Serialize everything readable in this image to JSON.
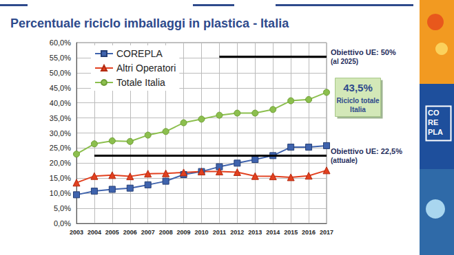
{
  "chart_data": {
    "type": "line",
    "title": "Percentuale riciclo imballaggi in plastica - Italia",
    "categories": [
      "2003",
      "2004",
      "2005",
      "2006",
      "2007",
      "2008",
      "2009",
      "2010",
      "2011",
      "2012",
      "2013",
      "2014",
      "2015",
      "2016",
      "2017"
    ],
    "series": [
      {
        "name": "COREPLA",
        "color": "#3f63ad",
        "marker": "square",
        "values": [
          9.5,
          10.7,
          11.3,
          11.7,
          12.8,
          14.0,
          16.2,
          17.2,
          18.8,
          20.0,
          21.2,
          22.5,
          25.3,
          25.3,
          25.8
        ]
      },
      {
        "name": "Altri Operatori",
        "color": "#e2401f",
        "marker": "triangle",
        "values": [
          13.5,
          15.7,
          16.0,
          15.6,
          16.5,
          16.6,
          16.9,
          17.2,
          17.2,
          17.0,
          15.7,
          15.6,
          15.3,
          15.8,
          17.6
        ]
      },
      {
        "name": "Totale Italia",
        "color": "#8cbf4e",
        "marker": "circle",
        "values": [
          23.0,
          26.4,
          27.4,
          27.2,
          29.3,
          30.5,
          33.4,
          34.6,
          35.9,
          36.6,
          36.6,
          37.8,
          40.7,
          41.1,
          43.5
        ]
      }
    ],
    "ylim": [
      0,
      60
    ],
    "yticks": [
      {
        "value": 0,
        "label": "0,0%"
      },
      {
        "value": 5,
        "label": "5,0%"
      },
      {
        "value": 10,
        "label": "10,0%"
      },
      {
        "value": 15,
        "label": "15,0%"
      },
      {
        "value": 20,
        "label": "20,0%"
      },
      {
        "value": 25,
        "label": "25,0%"
      },
      {
        "value": 30,
        "label": "30,0%"
      },
      {
        "value": 35,
        "label": "35,0%"
      },
      {
        "value": 40,
        "label": "40,0%"
      },
      {
        "value": 45,
        "label": "45,0%"
      },
      {
        "value": 50,
        "label": "50,0%"
      },
      {
        "value": 55,
        "label": "55,0%"
      },
      {
        "value": 60,
        "label": "60,0%"
      }
    ],
    "grid": true,
    "legend": "top-left",
    "annotations": [
      {
        "text": [
          "Obiettivo UE: 50%",
          "(al 2025)"
        ],
        "y": 55.3,
        "from": "2011"
      },
      {
        "text": [
          "Obiettivo UE: 22,5%",
          "(attuale)"
        ],
        "y": 22.5,
        "from": "2004"
      }
    ],
    "callout": {
      "value": 43.5,
      "label": "43,5%",
      "text": [
        "Riciclo totale",
        "Italia"
      ]
    }
  },
  "page": {
    "logo": [
      "CO",
      "RE",
      "PLA"
    ]
  }
}
